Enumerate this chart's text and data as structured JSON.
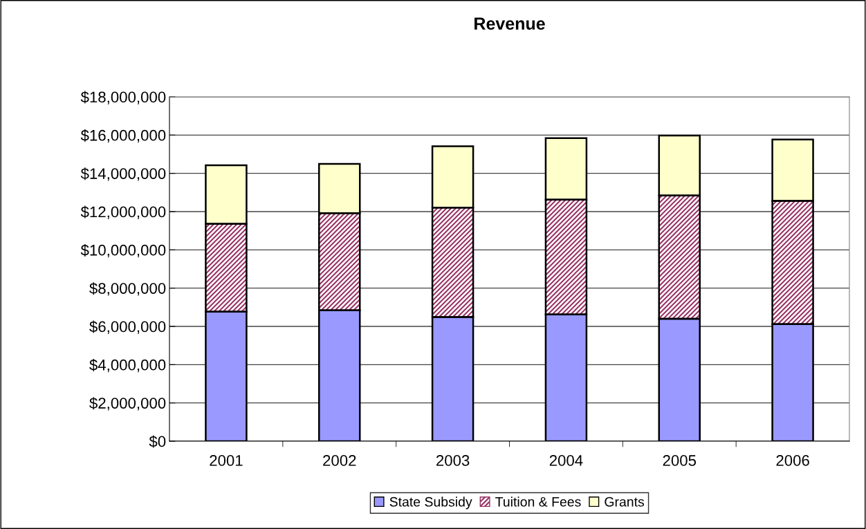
{
  "chart_data": {
    "type": "bar",
    "title": "Revenue",
    "stacked": true,
    "categories": [
      "2001",
      "2002",
      "2003",
      "2004",
      "2005",
      "2006"
    ],
    "series": [
      {
        "name": "State Subsidy",
        "color": "#9999ff",
        "values": [
          6770000,
          6840000,
          6490000,
          6620000,
          6400000,
          6120000
        ]
      },
      {
        "name": "Tuition & Fees",
        "color": "#993366",
        "values": [
          4590000,
          5080000,
          5720000,
          6000000,
          6440000,
          6440000
        ]
      },
      {
        "name": "Grants",
        "color": "#ffffcc",
        "values": [
          3060000,
          2570000,
          3210000,
          3220000,
          3140000,
          3210000
        ]
      }
    ],
    "ylim": [
      0,
      18000000
    ],
    "yticks": [
      {
        "value": 0,
        "label": "$0"
      },
      {
        "value": 2000000,
        "label": "$2,000,000"
      },
      {
        "value": 4000000,
        "label": "$4,000,000"
      },
      {
        "value": 6000000,
        "label": "$6,000,000"
      },
      {
        "value": 8000000,
        "label": "$8,000,000"
      },
      {
        "value": 10000000,
        "label": "$10,000,000"
      },
      {
        "value": 12000000,
        "label": "$12,000,000"
      },
      {
        "value": 14000000,
        "label": "$14,000,000"
      },
      {
        "value": 16000000,
        "label": "$16,000,000"
      },
      {
        "value": 18000000,
        "label": "$18,000,000"
      }
    ],
    "grid": "y",
    "legend": "bottom"
  }
}
